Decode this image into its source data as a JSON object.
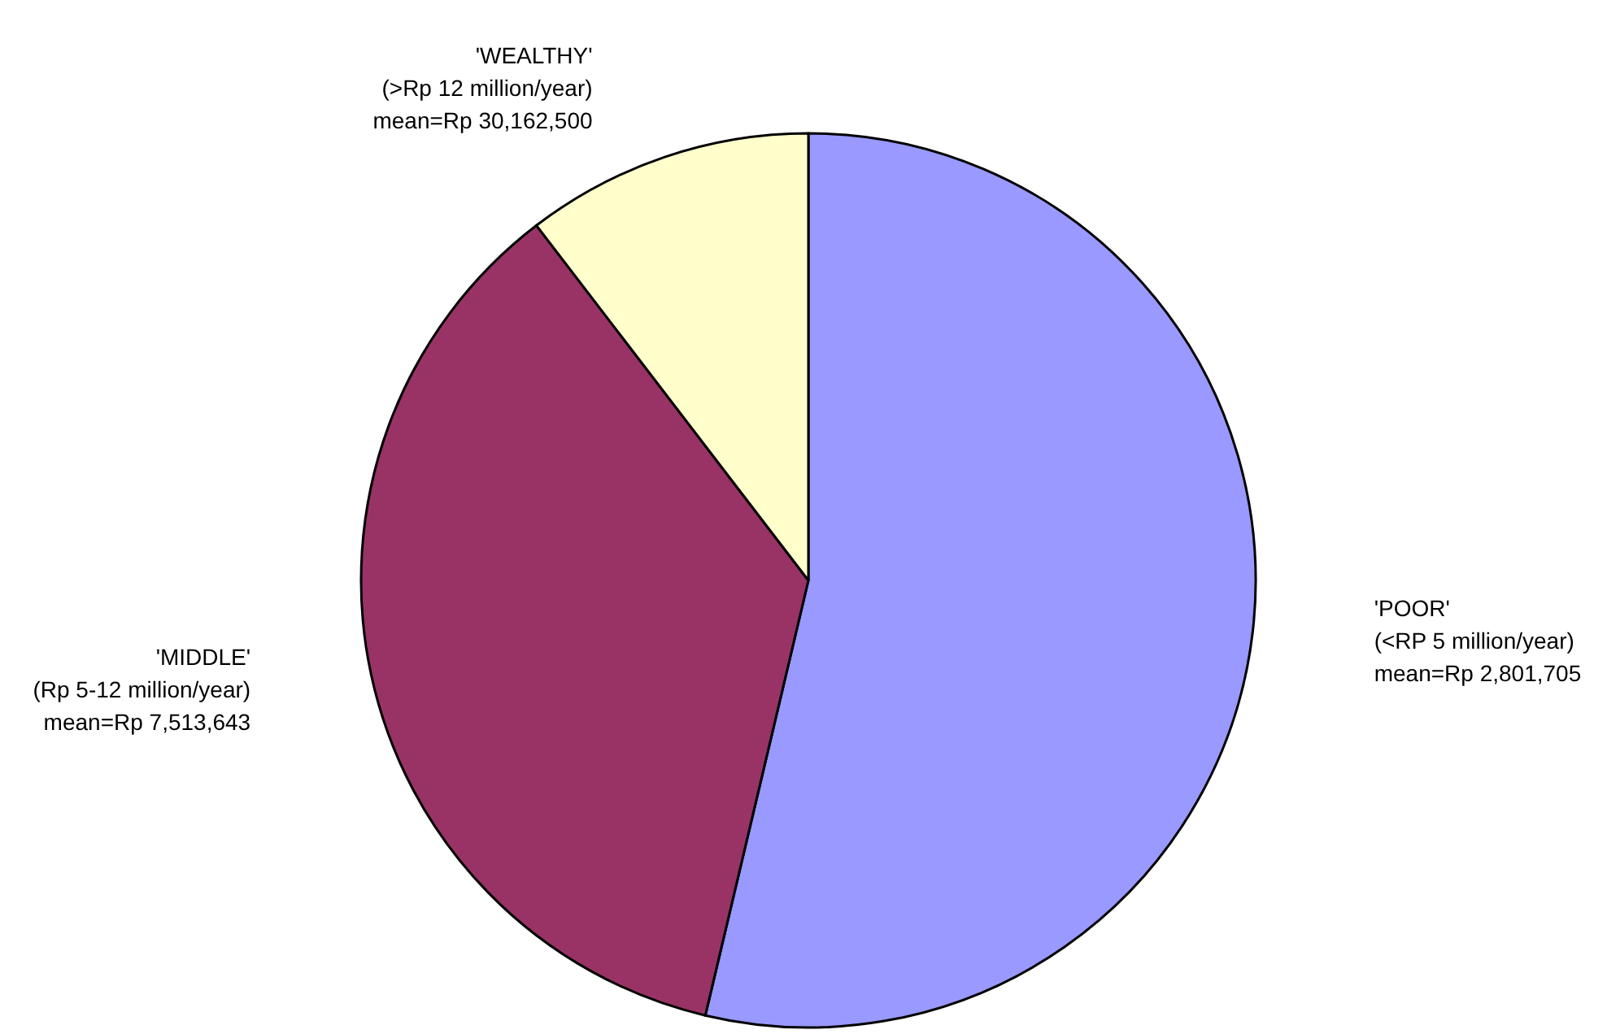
{
  "chart_data": {
    "type": "pie",
    "categories": [
      "'POOR'\n(<RP 5 million/year)\nmean=Rp 2,801,705",
      "'MIDDLE'\n(Rp 5-12 million/year)\nmean=Rp 7,513,643",
      "'WEALTHY'\n(>Rp 12 million/year)\nmean=Rp 30,162,500"
    ],
    "values": [
      53.7,
      35.9,
      10.4
    ],
    "colors": [
      "#9999ff",
      "#993366",
      "#ffffcc"
    ],
    "legend": false
  }
}
